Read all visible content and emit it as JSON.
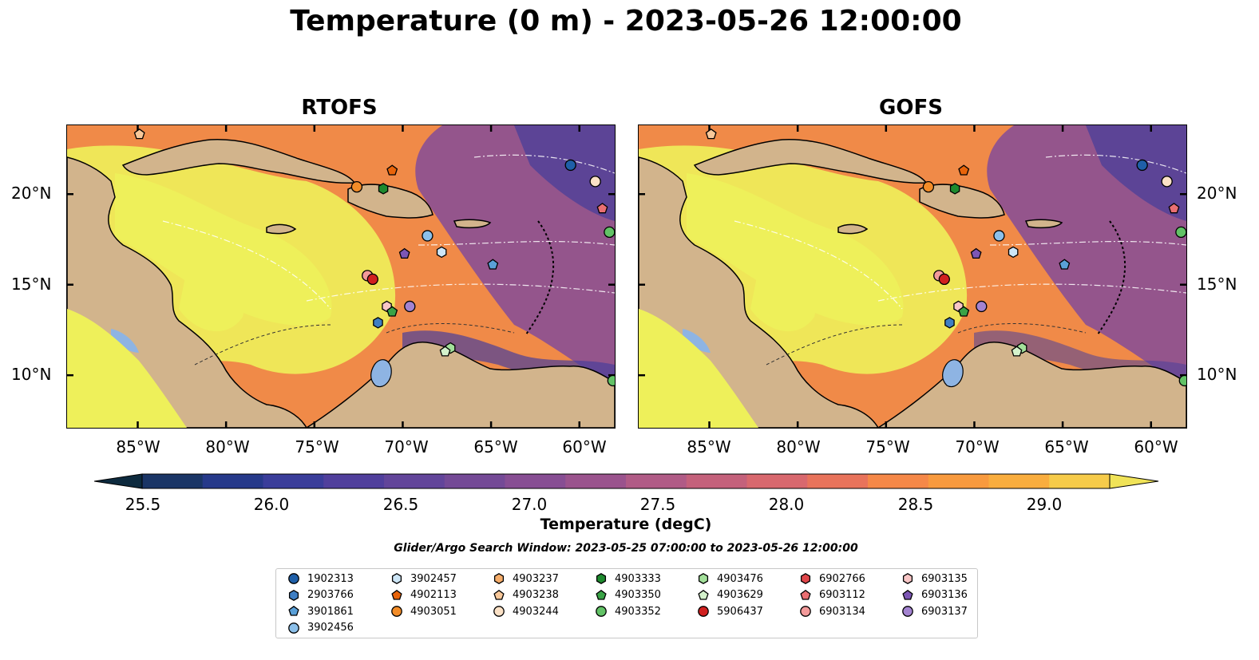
{
  "title": "Temperature (0 m) - 2023-05-26 12:00:00",
  "panels": [
    {
      "title": "RTOFS"
    },
    {
      "title": "GOFS"
    }
  ],
  "axes": {
    "lat_labels": [
      "20°N",
      "15°N",
      "10°N"
    ],
    "lon_labels": [
      "85°W",
      "80°W",
      "75°W",
      "70°W",
      "65°W",
      "60°W"
    ]
  },
  "colorbar": {
    "label": "Temperature (degC)",
    "ticks": [
      "25.5",
      "26.0",
      "26.5",
      "27.0",
      "27.5",
      "28.0",
      "28.5",
      "29.0"
    ],
    "colors": [
      "#0d2a3e",
      "#1a3566",
      "#26398a",
      "#3a3d9a",
      "#503f9c",
      "#62459a",
      "#744a96",
      "#874e93",
      "#9a538d",
      "#b05b86",
      "#c4617b",
      "#d8686e",
      "#e8735b",
      "#f58848",
      "#f89a3e",
      "#f9ad3e",
      "#f6cb4a",
      "#f0e358"
    ]
  },
  "search_window": "Glider/Argo Search Window: 2023-05-25 07:00:00 to 2023-05-26 12:00:00",
  "legend": [
    {
      "id": "1902313",
      "shape": "circle",
      "color": "#1f5fa8"
    },
    {
      "id": "2903766",
      "shape": "hexagon",
      "color": "#3f7fc4"
    },
    {
      "id": "3901861",
      "shape": "pentagon",
      "color": "#5aa0d8"
    },
    {
      "id": "3902456",
      "shape": "circle",
      "color": "#8cc0ea"
    },
    {
      "id": "3902457",
      "shape": "hexagon",
      "color": "#cde6f7"
    },
    {
      "id": "4902113",
      "shape": "pentagon",
      "color": "#e8640a"
    },
    {
      "id": "4903051",
      "shape": "circle",
      "color": "#f28c28"
    },
    {
      "id": "4903237",
      "shape": "hexagon",
      "color": "#f6ad6a"
    },
    {
      "id": "4903238",
      "shape": "pentagon",
      "color": "#f8c89a"
    },
    {
      "id": "4903244",
      "shape": "circle",
      "color": "#fbe1c6"
    },
    {
      "id": "4903333",
      "shape": "hexagon",
      "color": "#1e8a2e"
    },
    {
      "id": "4903350",
      "shape": "pentagon",
      "color": "#3aa346"
    },
    {
      "id": "4903352",
      "shape": "circle",
      "color": "#62c266"
    },
    {
      "id": "4903476",
      "shape": "hexagon",
      "color": "#a3e09a"
    },
    {
      "id": "4903629",
      "shape": "pentagon",
      "color": "#d4f2cc"
    },
    {
      "id": "5906437",
      "shape": "circle",
      "color": "#d0201f"
    },
    {
      "id": "6902766",
      "shape": "hexagon",
      "color": "#e0464a"
    },
    {
      "id": "6903112",
      "shape": "pentagon",
      "color": "#ea6f72"
    },
    {
      "id": "6903134",
      "shape": "circle",
      "color": "#f39a9a"
    },
    {
      "id": "6903135",
      "shape": "hexagon",
      "color": "#f8c6c6"
    },
    {
      "id": "6903136",
      "shape": "pentagon",
      "color": "#7d56b4"
    },
    {
      "id": "6903137",
      "shape": "circle",
      "color": "#a383d0"
    }
  ],
  "map_colors": {
    "land": "#d2b48c",
    "lakes": "#8eb4e3",
    "warm": "#eef05a",
    "mid": "#f08a48",
    "cool": "#8a4f93",
    "coldest": "#4a3f9a"
  }
}
